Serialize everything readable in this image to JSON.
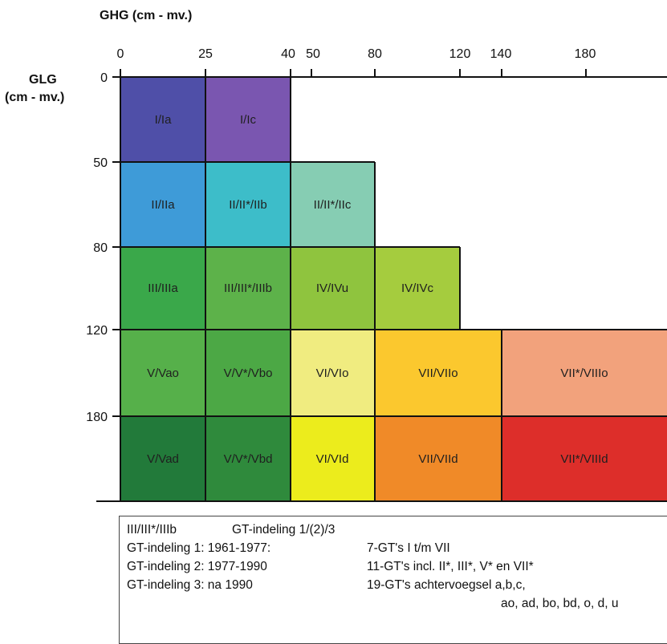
{
  "header": {
    "x_axis_title": "GHG (cm - mv.)",
    "y_axis_title_line1": "GLG",
    "y_axis_title_line2": "(cm - mv.)"
  },
  "axes": {
    "x_ticks": [
      "0",
      "25",
      "40",
      "50",
      "80",
      "120",
      "140",
      "180"
    ],
    "y_ticks": [
      "0",
      "50",
      "80",
      "120",
      "180"
    ]
  },
  "cells": [
    {
      "label": "I/Ia",
      "color": "#4f4fa8"
    },
    {
      "label": "I/Ic",
      "color": "#7a56b0"
    },
    {
      "label": "II/IIa",
      "color": "#3e9bd8"
    },
    {
      "label": "II/II*/IIb",
      "color": "#3dbdc9"
    },
    {
      "label": "II/II*/IIc",
      "color": "#86cdb3"
    },
    {
      "label": "III/IIIa",
      "color": "#3aa84a"
    },
    {
      "label": "III/III*/IIIb",
      "color": "#5db24a"
    },
    {
      "label": "IV/IVu",
      "color": "#8fc43e"
    },
    {
      "label": "IV/IVc",
      "color": "#a5cc3e"
    },
    {
      "label": "V/Vao",
      "color": "#56b04a"
    },
    {
      "label": "V/V*/Vbo",
      "color": "#4ca845"
    },
    {
      "label": "VI/VIo",
      "color": "#f0ec80"
    },
    {
      "label": "VII/VIIo",
      "color": "#fbc82e"
    },
    {
      "label": "VII*/VIIIo",
      "color": "#f2a27c"
    },
    {
      "label": "V/Vad",
      "color": "#227a3a"
    },
    {
      "label": "V/V*/Vbd",
      "color": "#2f8a3c"
    },
    {
      "label": "VI/VId",
      "color": "#ecec1c"
    },
    {
      "label": "VII/VIId",
      "color": "#f08a28"
    },
    {
      "label": "VII*/VIIId",
      "color": "#dd2e2a"
    }
  ],
  "legend": {
    "row1_col1": "III/III*/IIIb",
    "row1_col2": "GT-indeling 1/(2)/3",
    "row2_col1": "GT-indeling 1: 1961-1977:",
    "row2_col2": "7-GT's I t/m VII",
    "row3_col1": "GT-indeling 2: 1977-1990",
    "row3_col2": "11-GT's incl. II*, III*, V* en VII*",
    "row4_col1": "GT-indeling 3: na 1990",
    "row4_col2": "19-GT's achtervoegsel a,b,c,",
    "row5_col2": "ao, ad, bo, bd, o, d, u"
  }
}
